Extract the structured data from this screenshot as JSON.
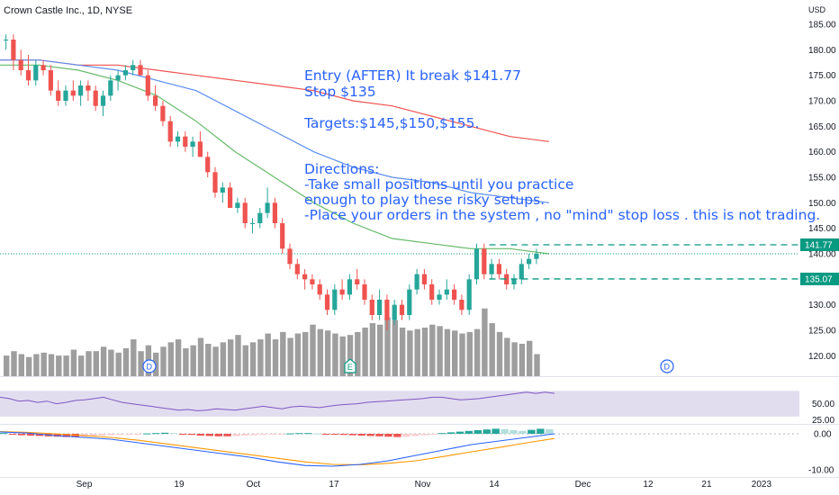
{
  "header": {
    "title": "Crown Castle Inc., 1D, NYSE",
    "currency": "USD"
  },
  "annotation": {
    "lines": [
      "Entry (AFTER) It break $141.77",
      "Stop $135",
      "",
      "Targets:$145,$150,$155.",
      "",
      "Directions:",
      "-Take small positions until you practice",
      "enough to play these risky setups.",
      "-Place your orders in the system , no \"mind\" stop loss . this is not trading."
    ]
  },
  "colors": {
    "up": "#26a69a",
    "down": "#ef5350",
    "volume": "#9e9e9e",
    "ma_red": "#ef5350",
    "ma_blue": "#5b8def",
    "ma_green": "#66bb6a",
    "rsi_line": "#7e57c2",
    "rsi_band": "#e1ddef",
    "macd_line": "#2962ff",
    "signal_line": "#ff9800",
    "hist_up": "#b2dfdb",
    "hist_up_strong": "#26a69a",
    "hist_down": "#ef5350",
    "hist_down_light": "#ffcdd2",
    "entry_line": "#089981",
    "annotation": "#2962ff"
  },
  "chart_data": [
    {
      "type": "candlestick",
      "ylabel": "USD",
      "ylim": [
        116,
        188
      ],
      "y_ticks": [
        120,
        125,
        130,
        135,
        140,
        145,
        150,
        155,
        160,
        165,
        170,
        175,
        180,
        185
      ],
      "x_ticks": [
        "Sep",
        "19",
        "Oct",
        "17",
        "Nov",
        "14",
        "Dec",
        "12",
        "21",
        "2023"
      ],
      "candles": [
        [
          182,
          183,
          180,
          182
        ],
        [
          182,
          183,
          176,
          178
        ],
        [
          178,
          180,
          175,
          176
        ],
        [
          176,
          179,
          173,
          174
        ],
        [
          174,
          178,
          173,
          177
        ],
        [
          177,
          178,
          175,
          176
        ],
        [
          176,
          177,
          171,
          172
        ],
        [
          172,
          174,
          169,
          170
        ],
        [
          170,
          173,
          169,
          172
        ],
        [
          172,
          174,
          170,
          171
        ],
        [
          171,
          174,
          169,
          173
        ],
        [
          173,
          174,
          170,
          172
        ],
        [
          172,
          173,
          168,
          169
        ],
        [
          169,
          172,
          167,
          171
        ],
        [
          171,
          175,
          170,
          174
        ],
        [
          174,
          176,
          172,
          175
        ],
        [
          175,
          177,
          174,
          176
        ],
        [
          176,
          178,
          175,
          177
        ],
        [
          177,
          178,
          175,
          175
        ],
        [
          175,
          176,
          170,
          171
        ],
        [
          171,
          173,
          168,
          169
        ],
        [
          169,
          170,
          165,
          166
        ],
        [
          166,
          167,
          161,
          162
        ],
        [
          162,
          164,
          161,
          163
        ],
        [
          163,
          164,
          160,
          161
        ],
        [
          161,
          163,
          159,
          162
        ],
        [
          162,
          164,
          159,
          159
        ],
        [
          159,
          160,
          155,
          156
        ],
        [
          156,
          157,
          151,
          152
        ],
        [
          152,
          154,
          150,
          153
        ],
        [
          153,
          154,
          149,
          149
        ],
        [
          149,
          151,
          148,
          150
        ],
        [
          150,
          151,
          145,
          146
        ],
        [
          146,
          147,
          144,
          146
        ],
        [
          146,
          149,
          145,
          148
        ],
        [
          148,
          153,
          147,
          150
        ],
        [
          150,
          151,
          145,
          146
        ],
        [
          146,
          147,
          140,
          141
        ],
        [
          141,
          142,
          137,
          138
        ],
        [
          138,
          139,
          135,
          136
        ],
        [
          136,
          137,
          133,
          135
        ],
        [
          135,
          136,
          133,
          134
        ],
        [
          134,
          135,
          131,
          132
        ],
        [
          132,
          133,
          128,
          129
        ],
        [
          129,
          134,
          128,
          133
        ],
        [
          133,
          135,
          131,
          132
        ],
        [
          132,
          136,
          131,
          135
        ],
        [
          135,
          137,
          133,
          134
        ],
        [
          134,
          135,
          130,
          131
        ],
        [
          131,
          132,
          127,
          128
        ],
        [
          128,
          133,
          127,
          131
        ],
        [
          131,
          132,
          125,
          127
        ],
        [
          127,
          131,
          126,
          130
        ],
        [
          130,
          131,
          127,
          128
        ],
        [
          128,
          134,
          127,
          133
        ],
        [
          133,
          137,
          132,
          136
        ],
        [
          136,
          137,
          133,
          134
        ],
        [
          134,
          135,
          130,
          131
        ],
        [
          131,
          133,
          130,
          132
        ],
        [
          132,
          135,
          131,
          133
        ],
        [
          133,
          134,
          130,
          131
        ],
        [
          131,
          132,
          128,
          129
        ],
        [
          129,
          136,
          128,
          135
        ],
        [
          135,
          142,
          134,
          141
        ],
        [
          141,
          142,
          135,
          136
        ],
        [
          136,
          139,
          135,
          138
        ],
        [
          138,
          139,
          135,
          136
        ],
        [
          136,
          137,
          133,
          134
        ],
        [
          134,
          136,
          133,
          135
        ],
        [
          135,
          139,
          134,
          138
        ],
        [
          138,
          140,
          137,
          139
        ],
        [
          139,
          141,
          138,
          140
        ]
      ],
      "volume": [
        28,
        34,
        30,
        26,
        30,
        32,
        30,
        28,
        28,
        36,
        28,
        34,
        34,
        40,
        36,
        32,
        38,
        50,
        34,
        42,
        32,
        40,
        46,
        50,
        38,
        42,
        52,
        44,
        40,
        46,
        50,
        56,
        42,
        46,
        50,
        58,
        50,
        60,
        52,
        58,
        60,
        70,
        64,
        62,
        58,
        54,
        56,
        60,
        66,
        72,
        70,
        80,
        76,
        66,
        62,
        64,
        66,
        70,
        68,
        64,
        62,
        58,
        60,
        64,
        92,
        72,
        60,
        52,
        46,
        44,
        48,
        30
      ],
      "moving_averages": [
        {
          "color": "red",
          "values": [
            178,
            178,
            177,
            177,
            176,
            175,
            174,
            173,
            172,
            170,
            169,
            167,
            165,
            163,
            162
          ]
        },
        {
          "color": "blue",
          "values": [
            178,
            178,
            177,
            176,
            174,
            172,
            168,
            164,
            160,
            157,
            155,
            154,
            152,
            151,
            150
          ]
        },
        {
          "color": "green",
          "values": [
            177,
            177,
            176,
            174,
            171,
            166,
            160,
            155,
            150,
            146,
            143,
            142,
            141,
            141,
            140
          ]
        }
      ],
      "price_labels": [
        141.77,
        135.07
      ],
      "current_price_line": 140,
      "event_markers": [
        {
          "label": "D"
        },
        {
          "label": "E"
        },
        {
          "label": "D"
        }
      ]
    },
    {
      "type": "line",
      "name_hint": "oscillator",
      "y_ticks": [
        50.0,
        25.0
      ],
      "y_tick_labels": [
        "50.00",
        "25.00"
      ],
      "ylim": [
        20,
        90
      ],
      "band": [
        30,
        70
      ],
      "values": [
        60,
        58,
        54,
        55,
        52,
        54,
        50,
        52,
        55,
        56,
        58,
        60,
        56,
        52,
        50,
        48,
        46,
        44,
        42,
        40,
        41,
        39,
        40,
        42,
        41,
        40,
        42,
        44,
        46,
        44,
        42,
        45,
        46,
        45,
        44,
        46,
        48,
        49,
        50,
        52,
        53,
        54,
        55,
        56,
        57,
        58,
        60,
        60,
        58,
        56,
        57,
        58,
        60,
        62,
        64,
        66,
        68,
        66,
        68,
        66
      ]
    },
    {
      "type": "bar",
      "name_hint": "macd",
      "y_ticks": [
        0.0,
        -10.0
      ],
      "y_tick_labels": [
        "0.00",
        "-10.00"
      ],
      "ylim": [
        -12,
        2.5
      ],
      "histogram": [
        0.2,
        -0.2,
        -0.4,
        -0.5,
        -0.6,
        -0.7,
        -0.8,
        -0.9,
        -0.9,
        -0.8,
        -0.7,
        -0.5,
        -0.4,
        -0.3,
        -0.2,
        -0.1,
        0.1,
        0.2,
        0.3,
        0.2,
        -0.1,
        -0.3,
        -0.5,
        -0.6,
        -0.7,
        -0.7,
        -0.6,
        -0.5,
        -0.4,
        -0.3,
        -0.2,
        -0.1,
        0.1,
        0.2,
        0.2,
        0.1,
        -0.1,
        -0.2,
        -0.3,
        -0.4,
        -0.5,
        -0.6,
        -0.7,
        -0.8,
        -0.9,
        -0.8,
        -0.6,
        -0.4,
        -0.2,
        0.2,
        0.4,
        0.6,
        0.8,
        1.0,
        1.2,
        1.4,
        1.3,
        1.0,
        0.8,
        1.1,
        1.4,
        1.3
      ],
      "macd_line": [
        0.5,
        0.2,
        -0.5,
        -1.0,
        -1.5,
        -2.5,
        -3.5,
        -4.5,
        -5.5,
        -6.5,
        -7.8,
        -8.8,
        -9.0,
        -8.5,
        -7.5,
        -6.0,
        -4.5,
        -3.0,
        -2.0,
        -1.0,
        0.0
      ],
      "signal_line": [
        0.6,
        0.4,
        0.0,
        -0.5,
        -1.0,
        -1.8,
        -2.8,
        -3.8,
        -4.8,
        -5.8,
        -6.8,
        -7.8,
        -8.5,
        -8.6,
        -8.2,
        -7.5,
        -6.3,
        -5.0,
        -3.8,
        -2.5,
        -1.3
      ]
    }
  ]
}
